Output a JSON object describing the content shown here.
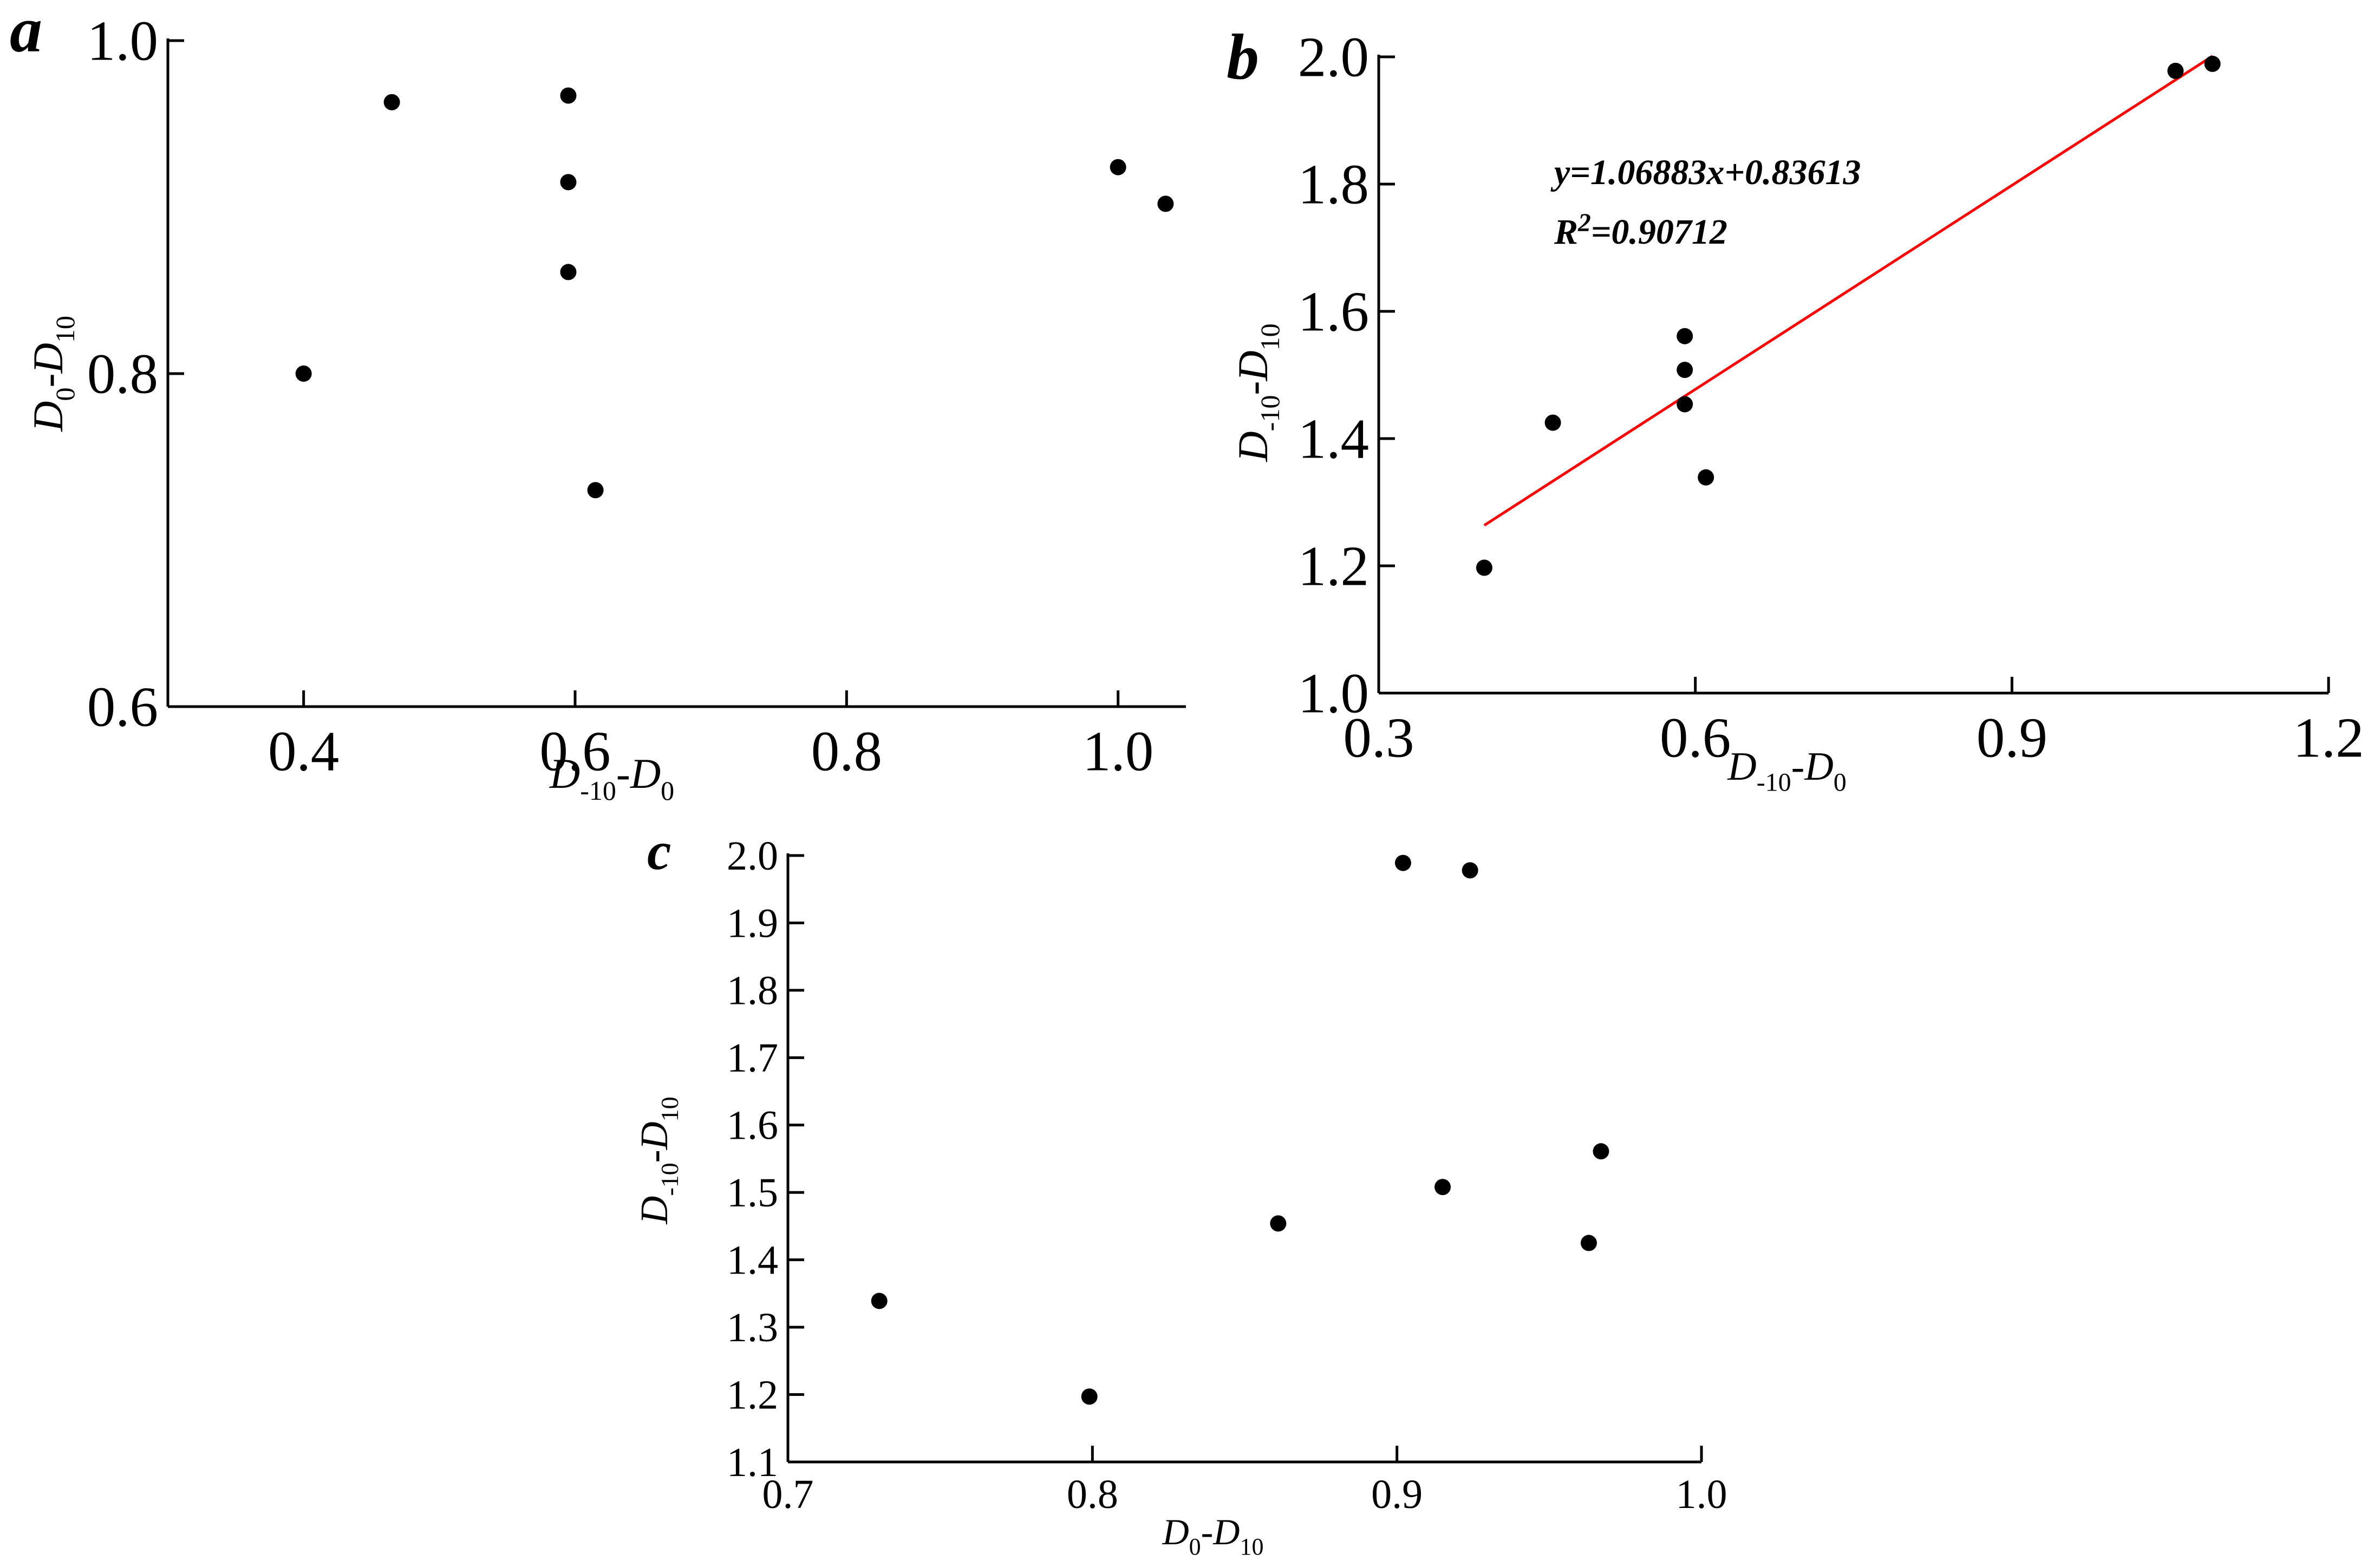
{
  "chart_data": [
    {
      "type": "scatter",
      "panel": "a",
      "xlabel": {
        "main": "D",
        "sub1": "-10",
        "mid": "-D",
        "sub2": "0"
      },
      "ylabel": {
        "main": "D",
        "sub1": "0",
        "mid": "-D",
        "sub2": "10"
      },
      "xlim": [
        0.3,
        1.05
      ],
      "ylim": [
        0.6,
        1.0
      ],
      "xticks": [
        0.4,
        0.6,
        0.8,
        1.0
      ],
      "xtick_labels": [
        "0.4",
        "0.6",
        "0.8",
        "1.0"
      ],
      "yticks": [
        0.6,
        0.8,
        1.0
      ],
      "ytick_labels": [
        "0.6",
        "0.8",
        "1.0"
      ],
      "points": [
        {
          "x": 0.4,
          "y": 0.8
        },
        {
          "x": 0.465,
          "y": 0.963
        },
        {
          "x": 0.595,
          "y": 0.967
        },
        {
          "x": 0.595,
          "y": 0.915
        },
        {
          "x": 0.595,
          "y": 0.861
        },
        {
          "x": 0.615,
          "y": 0.73
        },
        {
          "x": 1.0,
          "y": 0.924
        },
        {
          "x": 1.035,
          "y": 0.902
        }
      ]
    },
    {
      "type": "scatter",
      "panel": "b",
      "xlabel": {
        "main": "D",
        "sub1": "-10",
        "mid": "-D",
        "sub2": "0"
      },
      "ylabel": {
        "main": "D",
        "sub1": "-10",
        "mid": "-D",
        "sub2": "10"
      },
      "xlim": [
        0.3,
        1.2
      ],
      "ylim": [
        1.0,
        2.0
      ],
      "xticks": [
        0.3,
        0.6,
        0.9,
        1.2
      ],
      "xtick_labels": [
        "0.3",
        "0.6",
        "0.9",
        "1.2"
      ],
      "yticks": [
        1.0,
        1.2,
        1.4,
        1.6,
        1.8,
        2.0
      ],
      "ytick_labels": [
        "1.0",
        "1.2",
        "1.4",
        "1.6",
        "1.8",
        "2.0"
      ],
      "points": [
        {
          "x": 0.4,
          "y": 1.197
        },
        {
          "x": 0.465,
          "y": 1.425
        },
        {
          "x": 0.59,
          "y": 1.561
        },
        {
          "x": 0.59,
          "y": 1.508
        },
        {
          "x": 0.59,
          "y": 1.454
        },
        {
          "x": 0.61,
          "y": 1.339
        },
        {
          "x": 1.055,
          "y": 1.978
        },
        {
          "x": 1.09,
          "y": 1.989
        }
      ],
      "fit_line": {
        "x1": 0.4,
        "x2": 1.09,
        "slope": 1.06883,
        "intercept": 0.83613,
        "color": "#ff0000"
      },
      "annotation": {
        "equation": "y=1.06883x+0.83613",
        "r2_prefix": "R",
        "r2_sup": "2",
        "r2_suffix": "=0.90712"
      }
    },
    {
      "type": "scatter",
      "panel": "c",
      "xlabel": {
        "main": "D",
        "sub1": "0",
        "mid": "-D",
        "sub2": "10"
      },
      "ylabel": {
        "main": "D",
        "sub1": "-10",
        "mid": "-D",
        "sub2": "10"
      },
      "xlim": [
        0.7,
        1.0
      ],
      "ylim": [
        1.1,
        2.0
      ],
      "xticks": [
        0.7,
        0.8,
        0.9,
        1.0
      ],
      "xtick_labels": [
        "0.7",
        "0.8",
        "0.9",
        "1.0"
      ],
      "yticks": [
        1.1,
        1.2,
        1.3,
        1.4,
        1.5,
        1.6,
        1.7,
        1.8,
        1.9,
        2.0
      ],
      "ytick_labels": [
        "1.1",
        "1.2",
        "1.3",
        "1.4",
        "1.5",
        "1.6",
        "1.7",
        "1.8",
        "1.9",
        "2.0"
      ],
      "points": [
        {
          "x": 0.73,
          "y": 1.339
        },
        {
          "x": 0.799,
          "y": 1.197
        },
        {
          "x": 0.861,
          "y": 1.454
        },
        {
          "x": 0.902,
          "y": 1.989
        },
        {
          "x": 0.915,
          "y": 1.508
        },
        {
          "x": 0.924,
          "y": 1.978
        },
        {
          "x": 0.963,
          "y": 1.425
        },
        {
          "x": 0.967,
          "y": 1.561
        }
      ]
    }
  ]
}
